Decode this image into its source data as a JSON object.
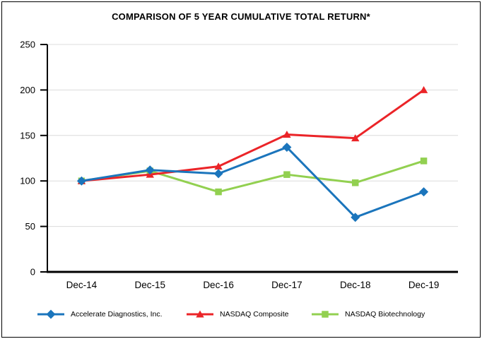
{
  "title": "COMPARISON OF 5 YEAR CUMULATIVE TOTAL RETURN*",
  "chart_data": {
    "type": "line",
    "title": "COMPARISON OF 5 YEAR CUMULATIVE TOTAL RETURN*",
    "categories": [
      "Dec-14",
      "Dec-15",
      "Dec-16",
      "Dec-17",
      "Dec-18",
      "Dec-19"
    ],
    "series": [
      {
        "name": "Accelerate Diagnostics, Inc.",
        "values": [
          100,
          112,
          108,
          137,
          60,
          88
        ],
        "color": "#1B75BC",
        "marker": "diamond"
      },
      {
        "name": "NASDAQ Composite",
        "values": [
          100,
          107,
          116,
          151,
          147,
          200
        ],
        "color": "#EB2428",
        "marker": "triangle"
      },
      {
        "name": "NASDAQ Biotechnology",
        "values": [
          100,
          111,
          88,
          107,
          98,
          122
        ],
        "color": "#92D050",
        "marker": "square"
      }
    ],
    "xlabel": "",
    "ylabel": "",
    "ylim": [
      0,
      250
    ],
    "yticks": [
      0,
      50,
      100,
      150,
      200,
      250
    ],
    "grid": true,
    "legend_position": "bottom",
    "colors": {
      "grid": "#DCDCDC",
      "axis": "#000000",
      "background": "#FFFFFF"
    }
  }
}
